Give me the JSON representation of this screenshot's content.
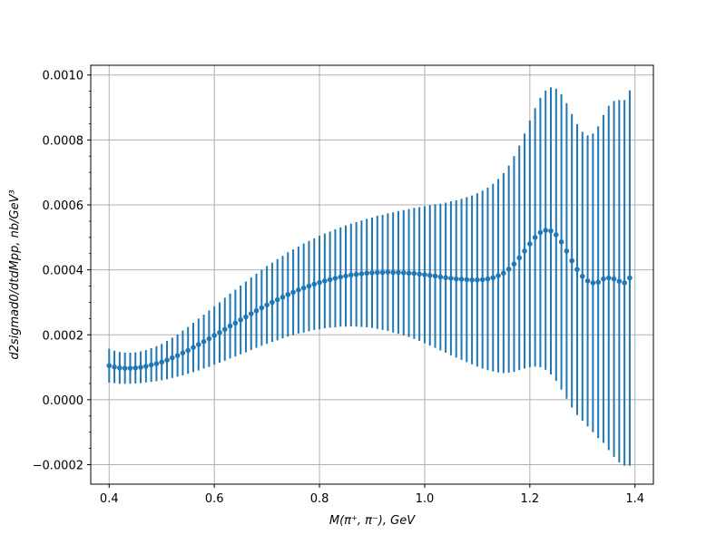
{
  "chart_data": {
    "type": "scatter",
    "title": "",
    "xlabel": "M(π⁺, π⁻), GeV",
    "ylabel": "d2sigmad0/dtdMpp, nb/GeV³",
    "xlim": [
      0.365,
      1.435
    ],
    "ylim": [
      -0.00026,
      0.00103
    ],
    "xticks": [
      0.4,
      0.6,
      0.8,
      1.0,
      1.2,
      1.4
    ],
    "xtick_labels": [
      "0.4",
      "0.6",
      "0.8",
      "1.0",
      "1.2",
      "1.4"
    ],
    "yticks": [
      -0.0002,
      0.0,
      0.0002,
      0.0004,
      0.0006,
      0.0008,
      0.001
    ],
    "ytick_labels": [
      "−0.0002",
      "0.0000",
      "0.0002",
      "0.0004",
      "0.0006",
      "0.0008",
      "0.0010"
    ],
    "grid": true,
    "color": "#1f77b4",
    "series": [
      {
        "x": [
          0.4,
          0.41,
          0.42,
          0.43,
          0.44,
          0.45,
          0.46,
          0.47,
          0.48,
          0.49,
          0.5,
          0.51,
          0.52,
          0.53,
          0.54,
          0.55,
          0.56,
          0.57,
          0.58,
          0.59,
          0.6,
          0.61,
          0.62,
          0.63,
          0.64,
          0.65,
          0.66,
          0.67,
          0.68,
          0.69,
          0.7,
          0.71,
          0.72,
          0.73,
          0.74,
          0.75,
          0.76,
          0.77,
          0.78,
          0.79,
          0.8,
          0.81,
          0.82,
          0.83,
          0.84,
          0.85,
          0.86,
          0.87,
          0.88,
          0.89,
          0.9,
          0.91,
          0.92,
          0.93,
          0.94,
          0.95,
          0.96,
          0.97,
          0.98,
          0.99,
          1.0,
          1.01,
          1.02,
          1.03,
          1.04,
          1.05,
          1.06,
          1.07,
          1.08,
          1.09,
          1.1,
          1.11,
          1.12,
          1.13,
          1.14,
          1.15,
          1.16,
          1.17,
          1.18,
          1.19,
          1.2,
          1.21,
          1.22,
          1.23,
          1.24,
          1.25,
          1.26,
          1.27,
          1.28,
          1.29,
          1.3,
          1.31,
          1.32,
          1.33,
          1.34,
          1.35,
          1.36,
          1.37,
          1.38,
          1.39
        ],
        "y": [
          0.000105,
          0.000101,
          9.8e-05,
          9.7e-05,
          9.7e-05,
          9.8e-05,
          0.0001,
          0.000103,
          0.000107,
          0.000111,
          0.000116,
          0.000122,
          0.000129,
          0.000136,
          0.000144,
          0.000152,
          0.000161,
          0.00017,
          0.000179,
          0.000188,
          0.000198,
          0.000207,
          0.000217,
          0.000227,
          0.000236,
          0.000246,
          0.000255,
          0.000265,
          0.000274,
          0.000283,
          0.000292,
          0.0003,
          0.000308,
          0.000316,
          0.000324,
          0.000331,
          0.000338,
          0.000344,
          0.00035,
          0.000356,
          0.000361,
          0.000366,
          0.00037,
          0.000374,
          0.000378,
          0.000381,
          0.000384,
          0.000386,
          0.000388,
          0.00039,
          0.000391,
          0.000392,
          0.000392,
          0.000393,
          0.000392,
          0.000392,
          0.000391,
          0.00039,
          0.000389,
          0.000387,
          0.000385,
          0.000383,
          0.000381,
          0.000378,
          0.000376,
          0.000374,
          0.000372,
          0.000371,
          0.00037,
          0.000369,
          0.000369,
          0.00037,
          0.000372,
          0.000376,
          0.000382,
          0.00039,
          0.000402,
          0.000418,
          0.000437,
          0.000458,
          0.00048,
          0.0005,
          0.000515,
          0.000522,
          0.00052,
          0.000508,
          0.000486,
          0.000458,
          0.000428,
          0.000401,
          0.00038,
          0.000366,
          0.00036,
          0.000362,
          0.000372,
          0.000375,
          0.000372,
          0.000365,
          0.00036,
          0.000375
        ],
        "err": [
          5.2e-05,
          5e-05,
          4.9e-05,
          4.8e-05,
          4.8e-05,
          4.8e-05,
          4.9e-05,
          5e-05,
          5.2e-05,
          5.4e-05,
          5.6e-05,
          5.9e-05,
          6.2e-05,
          6.5e-05,
          6.9e-05,
          7.2e-05,
          7.6e-05,
          8e-05,
          8.3e-05,
          8.7e-05,
          9e-05,
          9.3e-05,
          9.7e-05,
          0.0001,
          0.000103,
          0.000106,
          0.000109,
          0.000112,
          0.000114,
          0.000117,
          0.00012,
          0.000122,
          0.000125,
          0.000127,
          0.00013,
          0.000132,
          0.000134,
          0.000137,
          0.000139,
          0.000141,
          0.000144,
          0.000146,
          0.000148,
          0.000151,
          0.000153,
          0.000156,
          0.000158,
          0.000161,
          0.000164,
          0.000167,
          0.00017,
          0.000174,
          0.000177,
          0.000181,
          0.000185,
          0.000189,
          0.000193,
          0.000197,
          0.000202,
          0.000206,
          0.000211,
          0.000216,
          0.000221,
          0.000226,
          0.000231,
          0.000237,
          0.000242,
          0.000248,
          0.000254,
          0.00026,
          0.000267,
          0.000274,
          0.000281,
          0.000289,
          0.000298,
          0.000308,
          0.000319,
          0.000332,
          0.000346,
          0.000362,
          0.00038,
          0.000398,
          0.000415,
          0.00043,
          0.000442,
          0.00045,
          0.000455,
          0.000455,
          0.000452,
          0.000448,
          0.000445,
          0.000448,
          0.00046,
          0.00048,
          0.000505,
          0.00053,
          0.000548,
          0.000558,
          0.000563,
          0.000578
        ]
      }
    ]
  }
}
